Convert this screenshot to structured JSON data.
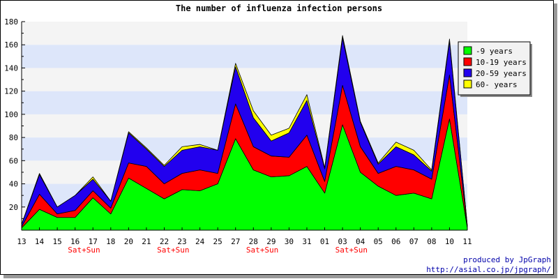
{
  "chart_data": {
    "type": "area",
    "stacked": true,
    "title": "The number of influenza infection persons",
    "xlabel": "",
    "ylabel": "",
    "ylim": [
      0,
      180
    ],
    "yticks": [
      20,
      40,
      60,
      80,
      100,
      120,
      140,
      160,
      180
    ],
    "grid": "horizontal bands",
    "legend_position": "top-right",
    "categories": [
      "13",
      "14",
      "15",
      "16",
      "17",
      "18",
      "20",
      "21",
      "22",
      "23",
      "24",
      "25",
      "27",
      "28",
      "29",
      "30",
      "31",
      "01",
      "03",
      "04",
      "05",
      "06",
      "07",
      "08",
      "10",
      "11"
    ],
    "weekend_markers": [
      {
        "after_index": 3,
        "label": "Sat+Sun"
      },
      {
        "after_index": 8,
        "label": "Sat+Sun"
      },
      {
        "after_index": 13,
        "label": "Sat+Sun"
      },
      {
        "after_index": 18,
        "label": "Sat+Sun"
      }
    ],
    "series": [
      {
        "name": "-9 years",
        "color": "#00ff00",
        "values": [
          2,
          18,
          11,
          11,
          28,
          14,
          45,
          36,
          27,
          35,
          34,
          40,
          79,
          52,
          46,
          47,
          55,
          32,
          91,
          50,
          38,
          30,
          32,
          27,
          96,
          2
        ]
      },
      {
        "name": "10-19 years",
        "color": "#ff0000",
        "values": [
          1,
          13,
          3,
          6,
          6,
          5,
          13,
          19,
          13,
          14,
          18,
          9,
          30,
          20,
          18,
          16,
          27,
          10,
          34,
          22,
          11,
          25,
          20,
          17,
          38,
          1
        ]
      },
      {
        "name": "20-59 years",
        "color": "#2200ee",
        "values": [
          2,
          17,
          6,
          13,
          10,
          6,
          26,
          15,
          15,
          20,
          20,
          20,
          32,
          25,
          13,
          21,
          30,
          11,
          41,
          21,
          8,
          17,
          13,
          7,
          29,
          1
        ]
      },
      {
        "name": "60- years",
        "color": "#ffff00",
        "values": [
          0,
          1,
          0,
          0,
          2,
          0,
          1,
          1,
          1,
          3,
          2,
          0,
          3,
          6,
          5,
          4,
          5,
          1,
          2,
          1,
          1,
          4,
          4,
          1,
          2,
          0
        ]
      }
    ]
  },
  "footer": {
    "line1": "produced by JpGraph",
    "line2": "http://asial.co.jp/jpgraph/",
    "color": "#0000aa"
  },
  "colors": {
    "band_light": "#f4f4f4",
    "band_blue": "#dde6fa",
    "weekend_label": "#ff0000"
  }
}
